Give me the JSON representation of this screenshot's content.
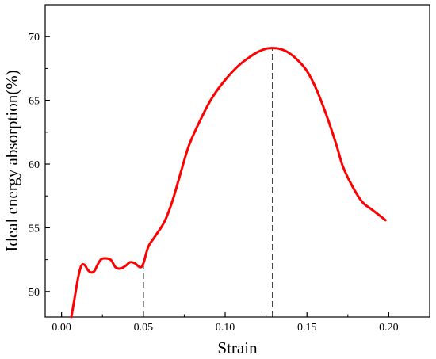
{
  "chart_data": {
    "type": "line",
    "xlabel": "Strain",
    "ylabel": "Ideal energy absorption(%)",
    "xlim": [
      -0.01,
      0.225
    ],
    "ylim": [
      48,
      72.5
    ],
    "xticks": [
      {
        "value": 0.0,
        "label": "0.00"
      },
      {
        "value": 0.05,
        "label": "0.05"
      },
      {
        "value": 0.1,
        "label": "0.10"
      },
      {
        "value": 0.15,
        "label": "0.15"
      },
      {
        "value": 0.2,
        "label": "0.20"
      }
    ],
    "yticks": [
      {
        "value": 50,
        "label": "50"
      },
      {
        "value": 55,
        "label": "55"
      },
      {
        "value": 60,
        "label": "60"
      },
      {
        "value": 65,
        "label": "65"
      },
      {
        "value": 70,
        "label": "70"
      }
    ],
    "grid": false,
    "line_color": "#ff0000",
    "reference_lines": [
      {
        "x": 0.05,
        "y_from": 48,
        "y_to": 52.3
      },
      {
        "x": 0.129,
        "y_from": 48,
        "y_to": 69.1
      }
    ],
    "series": [
      {
        "values": [
          [
            0.006,
            48.0
          ],
          [
            0.008,
            49.5
          ],
          [
            0.01,
            51.0
          ],
          [
            0.012,
            52.0
          ],
          [
            0.014,
            52.1
          ],
          [
            0.016,
            51.7
          ],
          [
            0.018,
            51.5
          ],
          [
            0.02,
            51.6
          ],
          [
            0.022,
            52.1
          ],
          [
            0.024,
            52.5
          ],
          [
            0.026,
            52.6
          ],
          [
            0.03,
            52.5
          ],
          [
            0.033,
            51.9
          ],
          [
            0.036,
            51.8
          ],
          [
            0.039,
            52.0
          ],
          [
            0.042,
            52.3
          ],
          [
            0.045,
            52.2
          ],
          [
            0.048,
            51.9
          ],
          [
            0.05,
            52.2
          ],
          [
            0.053,
            53.5
          ],
          [
            0.057,
            54.3
          ],
          [
            0.063,
            55.5
          ],
          [
            0.068,
            57.2
          ],
          [
            0.073,
            59.4
          ],
          [
            0.078,
            61.5
          ],
          [
            0.085,
            63.5
          ],
          [
            0.092,
            65.2
          ],
          [
            0.1,
            66.6
          ],
          [
            0.108,
            67.7
          ],
          [
            0.115,
            68.4
          ],
          [
            0.12,
            68.8
          ],
          [
            0.125,
            69.05
          ],
          [
            0.129,
            69.1
          ],
          [
            0.133,
            69.05
          ],
          [
            0.138,
            68.8
          ],
          [
            0.144,
            68.2
          ],
          [
            0.15,
            67.3
          ],
          [
            0.156,
            65.8
          ],
          [
            0.162,
            63.8
          ],
          [
            0.168,
            61.5
          ],
          [
            0.172,
            59.8
          ],
          [
            0.178,
            58.2
          ],
          [
            0.184,
            57.0
          ],
          [
            0.19,
            56.4
          ],
          [
            0.198,
            55.6
          ]
        ]
      }
    ]
  }
}
